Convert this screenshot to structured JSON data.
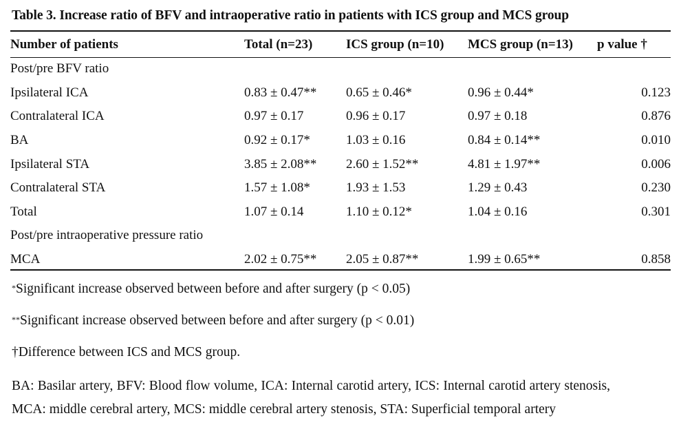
{
  "table": {
    "caption": "Table 3. Increase ratio of BFV and intraoperative ratio in patients with ICS group and MCS group",
    "columns": [
      "Number of patients",
      "Total (n=23)",
      "ICS group (n=10)",
      "MCS group (n=13)",
      "p value †"
    ],
    "sections": [
      {
        "title": "Post/pre BFV ratio",
        "rows": [
          {
            "label": "Ipsilateral ICA",
            "total": "0.83 ± 0.47**",
            "ics": "0.65 ± 0.46*",
            "mcs": "0.96 ± 0.44*",
            "p": "0.123"
          },
          {
            "label": "Contralateral ICA",
            "total": "0.97 ± 0.17",
            "ics": "0.96 ± 0.17",
            "mcs": "0.97 ± 0.18",
            "p": "0.876"
          },
          {
            "label": "BA",
            "total": "0.92 ± 0.17*",
            "ics": "1.03 ± 0.16",
            "mcs": "0.84 ± 0.14**",
            "p": "0.010"
          },
          {
            "label": "Ipsilateral STA",
            "total": "3.85 ± 2.08**",
            "ics": "2.60 ± 1.52**",
            "mcs": "4.81 ± 1.97**",
            "p": "0.006"
          },
          {
            "label": "Contralateral STA",
            "total": "1.57 ± 1.08*",
            "ics": "1.93 ± 1.53",
            "mcs": "1.29 ± 0.43",
            "p": "0.230"
          },
          {
            "label": "Total",
            "total": "1.07 ± 0.14",
            "ics": "1.10 ± 0.12*",
            "mcs": "1.04 ± 0.16",
            "p": "0.301"
          }
        ]
      },
      {
        "title": "Post/pre intraoperative pressure ratio",
        "rows": [
          {
            "label": "MCA",
            "total": "2.02 ± 0.75**",
            "ics": "2.05 ± 0.87**",
            "mcs": "1.99 ± 0.65**",
            "p": "0.858"
          }
        ]
      }
    ]
  },
  "notes": {
    "n1_mark": "*",
    "n1_text": "Significant increase observed between before and after surgery (p < 0.05)",
    "n2_mark": "**",
    "n2_text": "Significant increase observed between before and after surgery (p < 0.01)",
    "n3_text": "†Difference between ICS and MCS group.",
    "abbreviations": "BA: Basilar artery, BFV: Blood flow volume, ICA: Internal carotid artery, ICS: Internal carotid artery stenosis, MCA: middle cerebral artery, MCS: middle cerebral artery stenosis, STA: Superficial temporal artery"
  }
}
